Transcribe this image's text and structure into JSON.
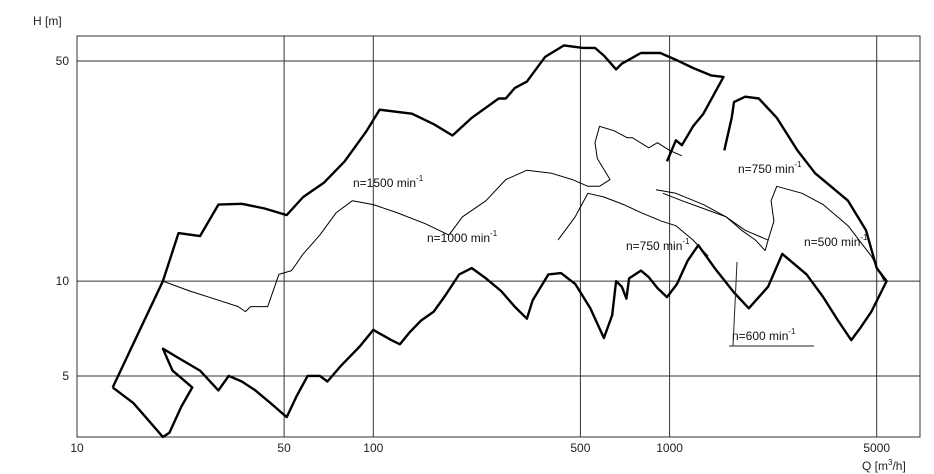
{
  "chart_data": {
    "type": "line",
    "scale": {
      "x": "log",
      "y": "log"
    },
    "grid": true,
    "xlabel": "Q [m³/h]",
    "ylabel": "H [m]",
    "xlim": [
      10,
      7000
    ],
    "ylim": [
      3.2,
      60
    ],
    "x_ticks": [
      {
        "value": 10,
        "label": "10"
      },
      {
        "value": 50,
        "label": "50"
      },
      {
        "value": 100,
        "label": "100"
      },
      {
        "value": 500,
        "label": "500"
      },
      {
        "value": 1000,
        "label": "1000"
      },
      {
        "value": 5000,
        "label": "5000"
      }
    ],
    "y_ticks": [
      {
        "value": 5,
        "label": "5"
      },
      {
        "value": 10,
        "label": "10"
      },
      {
        "value": 50,
        "label": "50"
      }
    ],
    "series": [
      {
        "name": "n=1500 min⁻¹",
        "thickness": "bold",
        "points": [
          [
            13.2,
            4.6
          ],
          [
            19.5,
            10
          ],
          [
            22,
            14.2
          ],
          [
            26,
            13.9
          ],
          [
            30,
            17.5
          ],
          [
            36,
            17.6
          ],
          [
            43,
            17
          ],
          [
            51,
            16.2
          ],
          [
            58,
            18.5
          ],
          [
            68,
            20.5
          ],
          [
            80,
            24
          ],
          [
            95,
            30
          ],
          [
            105,
            35
          ],
          [
            135,
            34
          ],
          [
            160,
            31.5
          ],
          [
            185,
            29
          ],
          [
            215,
            33
          ],
          [
            265,
            38
          ],
          [
            280,
            38
          ],
          [
            300,
            41
          ],
          [
            330,
            43
          ],
          [
            380,
            51.5
          ],
          [
            440,
            56
          ],
          [
            510,
            55
          ],
          [
            560,
            55
          ],
          [
            600,
            52
          ],
          [
            660,
            47
          ],
          [
            690,
            49
          ],
          [
            800,
            53
          ],
          [
            930,
            53
          ],
          [
            1070,
            50
          ],
          [
            1200,
            47.5
          ],
          [
            1380,
            45
          ],
          [
            1520,
            44.5
          ],
          [
            1300,
            34
          ],
          [
            1200,
            31
          ],
          [
            1100,
            27
          ],
          [
            1050,
            28
          ],
          [
            980,
            24
          ]
        ]
      },
      {
        "name": "n=1500 min⁻¹",
        "thickness": "bold",
        "points": [
          [
            13.2,
            4.6
          ],
          [
            15.5,
            4.1
          ],
          [
            17.5,
            3.6
          ],
          [
            19.5,
            3.2
          ],
          [
            20.5,
            3.3
          ],
          [
            22.5,
            4.0
          ],
          [
            24.5,
            4.6
          ],
          [
            21,
            5.2
          ],
          [
            19.5,
            6.1
          ],
          [
            22,
            5.7
          ],
          [
            26,
            5.2
          ],
          [
            30,
            4.5
          ],
          [
            32.5,
            5.0
          ],
          [
            36,
            4.8
          ],
          [
            40,
            4.5
          ],
          [
            45,
            4.1
          ],
          [
            51,
            3.7
          ],
          [
            55,
            4.3
          ],
          [
            60,
            5.0
          ],
          [
            66,
            5.0
          ],
          [
            70,
            4.8
          ],
          [
            78,
            5.4
          ],
          [
            90,
            6.2
          ],
          [
            100,
            7.0
          ],
          [
            115,
            6.5
          ],
          [
            123,
            6.3
          ],
          [
            133,
            6.9
          ],
          [
            145,
            7.5
          ],
          [
            160,
            8.0
          ],
          [
            175,
            9.0
          ],
          [
            195,
            10.5
          ],
          [
            215,
            11.0
          ],
          [
            240,
            10.2
          ],
          [
            270,
            9.3
          ],
          [
            300,
            8.3
          ],
          [
            330,
            7.6
          ],
          [
            345,
            8.7
          ],
          [
            390,
            10.5
          ],
          [
            430,
            10.6
          ],
          [
            480,
            9.8
          ],
          [
            540,
            8.2
          ],
          [
            600,
            6.6
          ],
          [
            640,
            7.8
          ],
          [
            660,
            10.0
          ],
          [
            690,
            9.6
          ],
          [
            715,
            8.8
          ],
          [
            730,
            10.2
          ],
          [
            800,
            10.8
          ],
          [
            850,
            10.3
          ],
          [
            910,
            9.5
          ],
          [
            980,
            8.9
          ],
          [
            1060,
            9.8
          ],
          [
            1150,
            11.6
          ],
          [
            1250,
            13.0
          ],
          [
            1420,
            11.0
          ],
          [
            1650,
            9.2
          ],
          [
            1850,
            8.2
          ],
          [
            2150,
            9.6
          ],
          [
            2400,
            12.2
          ],
          [
            2900,
            10.5
          ],
          [
            3300,
            8.9
          ],
          [
            3700,
            7.5
          ],
          [
            4100,
            6.5
          ],
          [
            4400,
            7.1
          ],
          [
            4800,
            8.0
          ],
          [
            5400,
            10.0
          ],
          [
            5000,
            11.0
          ],
          [
            4600,
            14.5
          ],
          [
            4000,
            18.0
          ],
          [
            3500,
            20.0
          ],
          [
            3100,
            22.0
          ],
          [
            2700,
            26.0
          ],
          [
            2300,
            33.0
          ],
          [
            2000,
            38.0
          ],
          [
            1800,
            38.5
          ],
          [
            1650,
            37.0
          ],
          [
            1620,
            33.0
          ],
          [
            1530,
            26.0
          ]
        ]
      },
      {
        "name": "n=1000 min⁻¹",
        "thickness": "thin",
        "points": [
          [
            19.5,
            10
          ],
          [
            24,
            9.3
          ],
          [
            30,
            8.7
          ],
          [
            35,
            8.3
          ],
          [
            37,
            8.0
          ],
          [
            38.5,
            8.3
          ],
          [
            40,
            8.3
          ],
          [
            44,
            8.3
          ],
          [
            48,
            10.5
          ],
          [
            53,
            10.8
          ],
          [
            58,
            12.2
          ],
          [
            66,
            14.0
          ],
          [
            75,
            16.5
          ],
          [
            85,
            18.0
          ],
          [
            100,
            17.5
          ],
          [
            120,
            16.5
          ],
          [
            150,
            15.2
          ],
          [
            180,
            14.0
          ],
          [
            200,
            16.0
          ],
          [
            240,
            18.0
          ],
          [
            280,
            21.0
          ],
          [
            330,
            22.5
          ],
          [
            400,
            22.0
          ],
          [
            470,
            21.0
          ],
          [
            530,
            20.0
          ],
          [
            580,
            20.0
          ],
          [
            630,
            21.0
          ],
          [
            570,
            24.5
          ],
          [
            560,
            27.5
          ],
          [
            580,
            31.0
          ],
          [
            650,
            30.0
          ],
          [
            720,
            28.5
          ],
          [
            750,
            28.5
          ],
          [
            850,
            26.5
          ],
          [
            910,
            27.5
          ],
          [
            1000,
            26.0
          ],
          [
            1100,
            25.0
          ]
        ]
      },
      {
        "name": "n=750 min⁻¹",
        "thickness": "thin",
        "points": [
          [
            420,
            13.5
          ],
          [
            480,
            16.0
          ],
          [
            530,
            19.0
          ],
          [
            600,
            18.5
          ],
          [
            700,
            17.5
          ],
          [
            800,
            16.5
          ],
          [
            940,
            15.5
          ],
          [
            1050,
            15.0
          ],
          [
            1200,
            13.5
          ],
          [
            1350,
            12.0
          ]
        ]
      },
      {
        "name": "n=750 min⁻¹",
        "thickness": "thin",
        "points": [
          [
            900,
            19.5
          ],
          [
            1050,
            19.0
          ],
          [
            1300,
            17.5
          ],
          [
            1550,
            16.0
          ],
          [
            1750,
            14.5
          ],
          [
            1950,
            13.5
          ],
          [
            2100,
            12.5
          ],
          [
            2150,
            13.5
          ],
          [
            2250,
            15.5
          ],
          [
            2200,
            18.0
          ],
          [
            2300,
            20.0
          ],
          [
            2800,
            19.0
          ],
          [
            3300,
            17.5
          ],
          [
            4000,
            15.0
          ],
          [
            4800,
            12.0
          ],
          [
            5300,
            10.0
          ]
        ]
      },
      {
        "name": "n=600 min⁻¹",
        "thickness": "thin",
        "points": [
          [
            2150,
            13.5
          ],
          [
            1800,
            14.5
          ],
          [
            1550,
            16.0
          ],
          [
            1300,
            17.0
          ],
          [
            1100,
            18.0
          ],
          [
            950,
            19.0
          ]
        ]
      }
    ],
    "annotations": [
      {
        "text": "n=1500 min",
        "sup": "-1"
      },
      {
        "text": "n=1000 min",
        "sup": "-1"
      },
      {
        "text": "n=750 min",
        "sup": "-1"
      },
      {
        "text": "n=750 min",
        "sup": "-1"
      },
      {
        "text": "n=600 min",
        "sup": "-1"
      },
      {
        "text": "n=500 min",
        "sup": "-1"
      }
    ]
  }
}
